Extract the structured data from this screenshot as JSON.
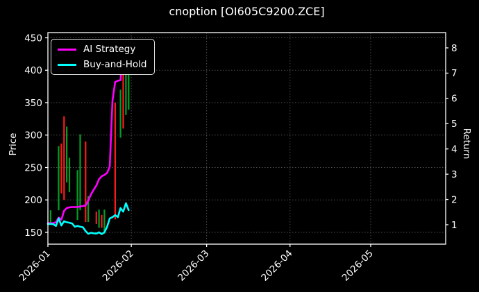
{
  "colors": {
    "background": "#000000",
    "foreground": "#ffffff",
    "grid": "#4d4d4d",
    "spine": "#ffffff",
    "candle_up": "#00a028",
    "candle_down": "#ff1a1a",
    "ai_strategy": "#ff00ff",
    "buy_and_hold": "#00ffff"
  },
  "chart_data": {
    "type": "candlestick+line",
    "title": "cnoption [OI605C9200.ZCE]",
    "xlabel": "",
    "ylabel_left": "Price",
    "ylabel_right": "Return",
    "x_tick_labels": [
      "2026-01",
      "2026-02",
      "2026-03",
      "2026-04",
      "2026-05"
    ],
    "price_ticks": [
      150,
      200,
      250,
      300,
      350,
      400,
      450
    ],
    "return_ticks": [
      1,
      2,
      3,
      4,
      5,
      6,
      7,
      8
    ],
    "price_axis_range": [
      132,
      458
    ],
    "return_axis_range": [
      0.23,
      8.6
    ],
    "x_axis_range": [
      "2026-01-01",
      "2026-05-28"
    ],
    "grid": "dotted",
    "legend_position": "upper-left",
    "candles": [
      {
        "date": "2026-01-02",
        "low": 162,
        "high": 184,
        "dir": "up"
      },
      {
        "date": "2026-01-05",
        "low": 184,
        "high": 283,
        "dir": "up"
      },
      {
        "date": "2026-01-06",
        "low": 210,
        "high": 287,
        "dir": "down"
      },
      {
        "date": "2026-01-07",
        "low": 200,
        "high": 329,
        "dir": "down"
      },
      {
        "date": "2026-01-08",
        "low": 227,
        "high": 313,
        "dir": "up"
      },
      {
        "date": "2026-01-09",
        "low": 212,
        "high": 265,
        "dir": "up"
      },
      {
        "date": "2026-01-12",
        "low": 169,
        "high": 246,
        "dir": "up"
      },
      {
        "date": "2026-01-13",
        "low": 184,
        "high": 301,
        "dir": "up"
      },
      {
        "date": "2026-01-15",
        "low": 166,
        "high": 290,
        "dir": "down"
      },
      {
        "date": "2026-01-16",
        "low": 166,
        "high": 206,
        "dir": "up"
      },
      {
        "date": "2026-01-19",
        "low": 163,
        "high": 182,
        "dir": "down"
      },
      {
        "date": "2026-01-20",
        "low": 157,
        "high": 185,
        "dir": "up"
      },
      {
        "date": "2026-01-21",
        "low": 157,
        "high": 177,
        "dir": "down"
      },
      {
        "date": "2026-01-22",
        "low": 148,
        "high": 185,
        "dir": "up"
      },
      {
        "date": "2026-01-26",
        "low": 170,
        "high": 350,
        "dir": "down"
      },
      {
        "date": "2026-01-28",
        "low": 296,
        "high": 370,
        "dir": "up"
      },
      {
        "date": "2026-01-29",
        "low": 310,
        "high": 440,
        "dir": "down"
      },
      {
        "date": "2026-01-30",
        "low": 331,
        "high": 411,
        "dir": "up"
      },
      {
        "date": "2026-01-31",
        "low": 339,
        "high": 403,
        "dir": "up"
      }
    ],
    "series": [
      {
        "name": "AI Strategy",
        "color": "#ff00ff",
        "axis": "return",
        "points": [
          [
            "2026-01-01",
            1.06
          ],
          [
            "2026-01-02",
            1.06
          ],
          [
            "2026-01-03",
            1.06
          ],
          [
            "2026-01-04",
            1.1
          ],
          [
            "2026-01-05",
            1.28
          ],
          [
            "2026-01-06",
            1.2
          ],
          [
            "2026-01-07",
            1.55
          ],
          [
            "2026-01-08",
            1.66
          ],
          [
            "2026-01-09",
            1.69
          ],
          [
            "2026-01-10",
            1.7
          ],
          [
            "2026-01-11",
            1.7
          ],
          [
            "2026-01-12",
            1.7
          ],
          [
            "2026-01-13",
            1.72
          ],
          [
            "2026-01-14",
            1.74
          ],
          [
            "2026-01-15",
            1.76
          ],
          [
            "2026-01-16",
            1.95
          ],
          [
            "2026-01-17",
            2.2
          ],
          [
            "2026-01-18",
            2.38
          ],
          [
            "2026-01-19",
            2.55
          ],
          [
            "2026-01-20",
            2.8
          ],
          [
            "2026-01-21",
            2.92
          ],
          [
            "2026-01-22",
            2.97
          ],
          [
            "2026-01-23",
            3.05
          ],
          [
            "2026-01-24",
            3.3
          ],
          [
            "2026-01-25",
            5.9
          ],
          [
            "2026-01-26",
            6.65
          ],
          [
            "2026-01-27",
            6.7
          ],
          [
            "2026-01-28",
            6.72
          ],
          [
            "2026-01-29",
            8.15
          ],
          [
            "2026-01-30",
            7.2
          ]
        ]
      },
      {
        "name": "Buy-and-Hold",
        "color": "#00ffff",
        "axis": "return",
        "points": [
          [
            "2026-01-01",
            1.03
          ],
          [
            "2026-01-02",
            1.03
          ],
          [
            "2026-01-03",
            1.02
          ],
          [
            "2026-01-04",
            0.95
          ],
          [
            "2026-01-05",
            1.25
          ],
          [
            "2026-01-06",
            0.97
          ],
          [
            "2026-01-07",
            1.14
          ],
          [
            "2026-01-08",
            1.1
          ],
          [
            "2026-01-09",
            1.08
          ],
          [
            "2026-01-10",
            1.05
          ],
          [
            "2026-01-11",
            0.92
          ],
          [
            "2026-01-12",
            0.95
          ],
          [
            "2026-01-13",
            0.92
          ],
          [
            "2026-01-14",
            0.9
          ],
          [
            "2026-01-15",
            0.75
          ],
          [
            "2026-01-16",
            0.64
          ],
          [
            "2026-01-17",
            0.68
          ],
          [
            "2026-01-18",
            0.66
          ],
          [
            "2026-01-19",
            0.65
          ],
          [
            "2026-01-20",
            0.7
          ],
          [
            "2026-01-21",
            0.63
          ],
          [
            "2026-01-22",
            0.7
          ],
          [
            "2026-01-23",
            0.92
          ],
          [
            "2026-01-24",
            1.25
          ],
          [
            "2026-01-25",
            1.3
          ],
          [
            "2026-01-26",
            1.38
          ],
          [
            "2026-01-27",
            1.3
          ],
          [
            "2026-01-28",
            1.66
          ],
          [
            "2026-01-29",
            1.52
          ],
          [
            "2026-01-30",
            1.85
          ],
          [
            "2026-01-31",
            1.58
          ]
        ]
      }
    ]
  }
}
